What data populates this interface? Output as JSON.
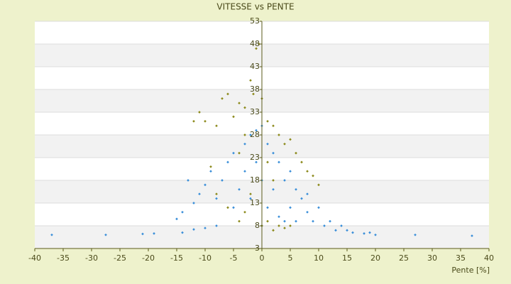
{
  "chart_data": {
    "type": "scatter",
    "title": "VITESSE vs PENTE",
    "x_label": "Pente [%]",
    "xlim": [
      -40,
      40
    ],
    "xticks": [
      -40,
      -35,
      -30,
      -25,
      -20,
      -15,
      -10,
      -5,
      0,
      5,
      10,
      15,
      20,
      25,
      30,
      35,
      40
    ],
    "ylim": [
      3,
      53
    ],
    "yticks": [
      3,
      8,
      13,
      18,
      23,
      28,
      33,
      38,
      43,
      48,
      53
    ],
    "grid": true,
    "series": [
      {
        "color": "#3b8fd9",
        "x": [
          -37,
          -27.5,
          -21,
          -19,
          -14,
          -12,
          -10,
          -8,
          -15,
          -14,
          -12,
          -11,
          -10,
          -13,
          -9,
          -8,
          -7,
          -6,
          -5,
          -5,
          -4,
          -3,
          -3,
          -2,
          -2,
          -1,
          -1,
          0,
          0,
          0,
          1,
          1,
          2,
          2,
          3,
          3,
          4,
          4,
          5,
          5,
          6,
          6,
          7,
          8,
          8,
          9,
          10,
          11,
          12,
          13,
          14,
          15,
          16,
          18,
          19,
          20,
          27,
          37
        ],
        "values": [
          6,
          6,
          6.2,
          6.3,
          6.5,
          7.2,
          7.5,
          8,
          9.5,
          11,
          13,
          15,
          17,
          18,
          20,
          14,
          18,
          22,
          24,
          12,
          16,
          26,
          20,
          28,
          14,
          29,
          22,
          30,
          18,
          8,
          26,
          12,
          24,
          16,
          22,
          10,
          18,
          9,
          20,
          12,
          16,
          9,
          14,
          11,
          15,
          9,
          12,
          8,
          9,
          7,
          8,
          7,
          6.5,
          6.3,
          6.5,
          6,
          6,
          5.8
        ]
      },
      {
        "color": "#8c8a1c",
        "x": [
          -11,
          -10,
          -8,
          -7,
          -6,
          -5,
          -4,
          -3,
          -2,
          -1.5,
          -1,
          -0.5,
          0,
          1,
          2,
          3,
          4,
          5,
          6,
          7,
          8,
          9,
          10,
          -9,
          -8,
          -6,
          -4,
          -3,
          -2,
          0,
          1,
          2,
          3,
          4,
          5,
          -12,
          -4,
          -3,
          1,
          2
        ],
        "values": [
          33,
          31,
          30,
          36,
          37,
          32,
          35,
          34,
          40,
          37,
          47,
          48,
          36,
          31,
          30,
          28,
          26,
          27,
          24,
          22,
          20,
          19,
          17,
          21,
          15,
          12,
          9,
          11,
          15,
          8,
          9,
          7,
          8,
          7.5,
          8,
          31,
          24,
          28,
          22,
          18
        ]
      }
    ]
  }
}
